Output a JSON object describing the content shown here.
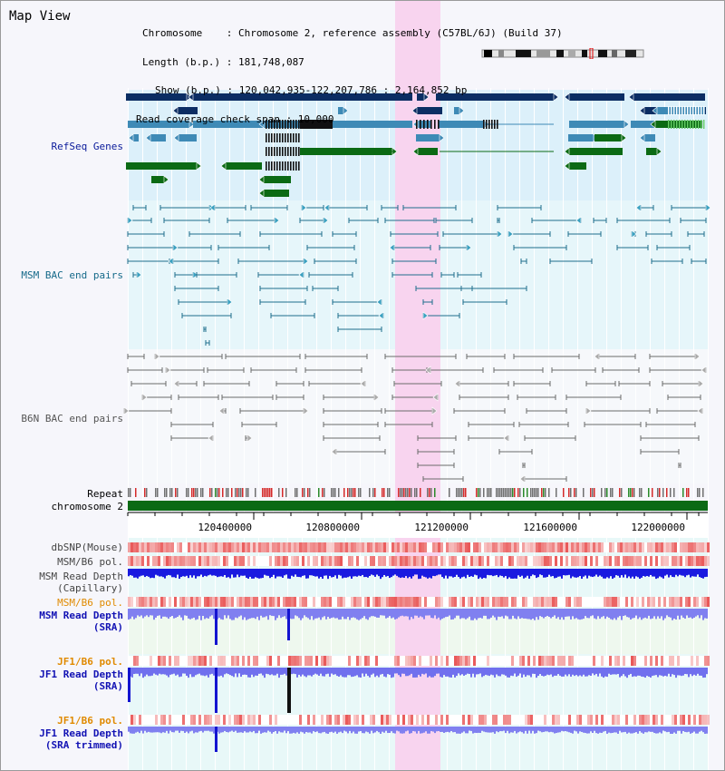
{
  "title": "Map View",
  "info": {
    "chromosome": "Chromosome    : Chromosome 2, reference assembly (C57BL/6J) (Build 37)",
    "length": "Length (b.p.) : 181,748,087",
    "show": "Show (b.p.) : 120,042,935-122,207,786 : 2,164,852 bp",
    "coverage": "Read coverage check span : 10,000"
  },
  "tracks": {
    "refseq": "RefSeq Genes",
    "msm_bac": "MSM BAC end pairs",
    "b6n_bac": "B6N BAC end pairs",
    "repeat": "Repeat",
    "chromosome": "chromosome 2",
    "dbsnp": "dbSNP(Mouse)",
    "msm_b6_pol_1": "MSM/B6 pol.",
    "msm_depth_cap_1": "MSM Read Depth",
    "msm_depth_cap_2": "(Capillary)",
    "msm_b6_pol_2": "MSM/B6 pol.",
    "msm_depth_sra_1": "MSM Read Depth",
    "msm_depth_sra_2": "(SRA)",
    "jf1_b6_pol_1": "JF1/B6 pol.",
    "jf1_depth_sra_1": "JF1 Read Depth",
    "jf1_depth_sra_2": "(SRA)",
    "jf1_b6_pol_2": "JF1/B6 pol.",
    "jf1_depth_trim_1": "JF1 Read Depth",
    "jf1_depth_trim_2": "(SRA trimmed)"
  },
  "ruler": {
    "ticks": [
      "120400000",
      "120800000",
      "121200000",
      "121600000",
      "122000000"
    ]
  },
  "colors": {
    "refseq_dark": "#0b2d63",
    "refseq_mid": "#3e8ab6",
    "refseq_green": "#0b6a14",
    "msm_bac": "#1f6e8c",
    "b6n_bac": "#555555",
    "highlight": "#f8d4ef",
    "depth_blue": "#1e1edc",
    "depth_light": "#7f7ff0",
    "pol_red": "#e34a4a"
  }
}
